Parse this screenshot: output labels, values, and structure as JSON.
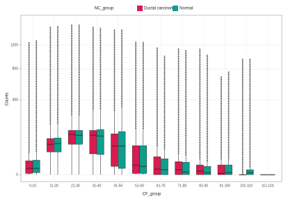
{
  "chart_data": {
    "type": "boxplot",
    "scale": "sqrt",
    "grid": true,
    "x_label": "CF_group",
    "y_label": "Counts",
    "legend_title": "NC_group",
    "legend_position": "top",
    "categories": [
      "0-10",
      "11-20",
      "21-30",
      "31-40",
      "41-50",
      "51-60",
      "61-70",
      "71-80",
      "81-90",
      "91-100",
      "101-110",
      "111-120"
    ],
    "ylim": [
      0,
      1700
    ],
    "yticks": [
      0,
      400,
      800,
      1200
    ],
    "series": [
      {
        "name": "Ductal carcinoma",
        "color": "#d81b50",
        "whisker_low": [
          0,
          0,
          0,
          0,
          0,
          0,
          0,
          0,
          0,
          0,
          0,
          0
        ],
        "q1": [
          0.1,
          37,
          66,
          31,
          4.9,
          0.1,
          0,
          0,
          0,
          0,
          0,
          0
        ],
        "median": [
          2.8,
          66,
          115,
          111,
          58,
          6.7,
          2.2,
          1.7,
          0.9,
          0.1,
          0,
          0
        ],
        "q3": [
          13.7,
          93,
          140,
          140,
          119,
          60,
          23,
          12,
          6.7,
          6.7,
          0,
          0
        ],
        "whisker_high": [
          35,
          180,
          250,
          300,
          290,
          150,
          57,
          31,
          17,
          17,
          0,
          0
        ],
        "max": [
          1260,
          1570,
          1610,
          1570,
          1510,
          1260,
          1160,
          1140,
          1140,
          690,
          960,
          0
        ]
      },
      {
        "name": "Normal",
        "color": "#0f9e8e",
        "whisker_low": [
          0,
          0,
          0,
          0,
          0,
          0,
          0,
          0,
          0,
          0,
          0,
          0
        ],
        "q1": [
          0.3,
          37,
          66,
          29,
          2.8,
          0.1,
          0,
          0,
          0,
          0,
          0,
          0
        ],
        "median": [
          2.8,
          69,
          111,
          107,
          58,
          4.9,
          1.7,
          0.5,
          0.3,
          0.3,
          0.3,
          0
        ],
        "q3": [
          15,
          96,
          140,
          145,
          132,
          60,
          18,
          11,
          4.9,
          6.7,
          1.7,
          0
        ],
        "whisker_high": [
          38,
          185,
          250,
          310,
          320,
          150,
          45,
          27,
          12,
          17,
          4,
          0
        ],
        "max": [
          1290,
          1580,
          1610,
          1540,
          1510,
          1260,
          1010,
          1110,
          1030,
          760,
          960,
          0
        ]
      }
    ]
  }
}
